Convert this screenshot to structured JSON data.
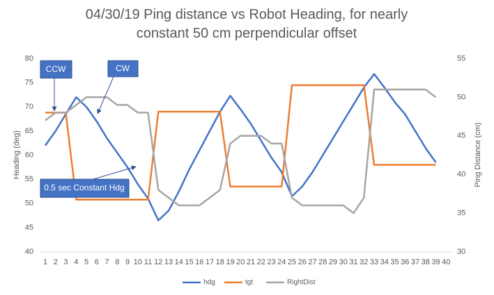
{
  "chart_data": {
    "type": "line",
    "title": "04/30/19 Ping distance vs Robot Heading, for nearly constant 50 cm perpendicular offset",
    "y_label": "Heading  (deg)",
    "y2_label": "Ping Distance (cm)",
    "categories": [
      "1",
      "2",
      "3",
      "4",
      "5",
      "6",
      "7",
      "8",
      "9",
      "10",
      "11",
      "12",
      "13",
      "14",
      "15",
      "16",
      "17",
      "18",
      "19",
      "20",
      "21",
      "22",
      "23",
      "24",
      "25",
      "26",
      "27",
      "28",
      "29",
      "30",
      "31",
      "32",
      "33",
      "34",
      "35",
      "36",
      "37",
      "38",
      "39",
      "40"
    ],
    "series": [
      {
        "name": "hdg",
        "color": "#4472c4",
        "values": [
          62,
          65,
          68.5,
          72,
          70,
          67,
          63.5,
          60.5,
          57.5,
          54,
          51,
          46.5,
          48.5,
          52.5,
          57,
          61,
          65,
          69,
          72.3,
          69.5,
          66.5,
          63,
          59.5,
          56.5,
          51.5,
          53.5,
          56.5,
          60,
          63.5,
          67,
          70.5,
          74,
          76.8,
          74,
          71,
          68.5,
          65,
          61.5,
          58.5,
          null
        ]
      },
      {
        "name": "tgt",
        "color": "#ed7d31",
        "values": [
          68.8,
          68.8,
          68.8,
          50.8,
          50.8,
          50.8,
          50.8,
          50.8,
          50.8,
          50.8,
          50.8,
          69,
          69,
          69,
          69,
          69,
          69,
          69,
          53.5,
          53.5,
          53.5,
          53.5,
          53.5,
          53.5,
          74.5,
          74.5,
          74.5,
          74.5,
          74.5,
          74.5,
          74.5,
          74.5,
          58,
          58,
          58,
          58,
          58,
          58,
          58,
          null
        ]
      },
      {
        "name": "RightDist",
        "color": "#a5a5a5",
        "axis": "y2",
        "values": [
          47,
          48,
          48,
          49,
          50,
          50,
          50,
          49,
          49,
          48,
          48,
          38,
          37,
          36,
          36,
          36,
          37,
          38,
          44,
          45,
          45,
          45,
          44,
          44,
          37,
          36,
          36,
          36,
          36,
          36,
          35,
          37,
          51,
          51,
          51,
          51,
          51,
          51,
          50,
          null
        ]
      }
    ],
    "ylim": [
      40,
      80
    ],
    "yticks": [
      40,
      45,
      50,
      55,
      60,
      65,
      70,
      75,
      80
    ],
    "y2lim": [
      30,
      55
    ],
    "y2ticks": [
      30,
      35,
      40,
      45,
      50,
      55
    ],
    "grid": false,
    "legend": "bottom",
    "annotations": [
      "CCW",
      "CW",
      "0.5 sec Constant Hdg"
    ]
  }
}
